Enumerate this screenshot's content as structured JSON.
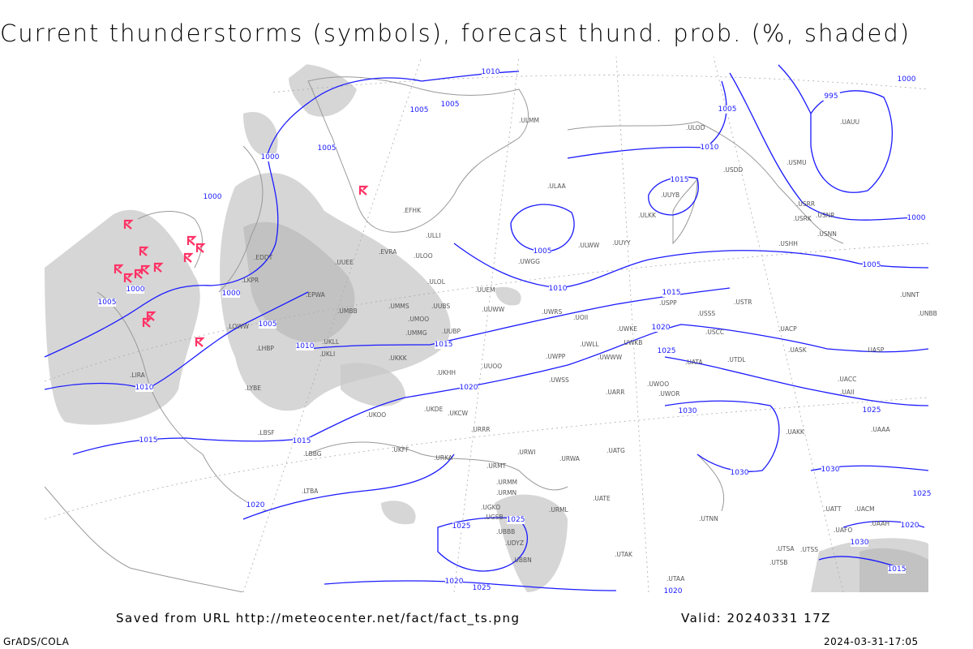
{
  "title": "Current thunderstorms (symbols), forecast thund. prob. (%, shaded)",
  "footer": {
    "saved_from": "Saved from URL http://meteocenter.net/fact/fact_ts.png",
    "valid": "Valid: 20240331 17Z",
    "software": "GrADS/COLA",
    "timestamp": "2024-03-31-17:05"
  },
  "colors": {
    "isobars": "#1a1aff",
    "thunderstorm_symbols": "#ff3366",
    "shading": "#c8c8c8",
    "coastlines": "#999999"
  },
  "map": {
    "isobar_labels": [
      "1010",
      "1000",
      "995",
      "1005",
      "1005",
      "1005",
      "1010",
      "1005",
      "1000",
      "1000",
      "1015",
      "1000",
      "1005",
      "1005",
      "1000",
      "1010",
      "1005",
      "1000",
      "1015",
      "1005",
      "1020",
      "1015",
      "1010",
      "1025",
      "1010",
      "1020",
      "1025",
      "1030",
      "1015",
      "1015",
      "1030",
      "1030",
      "1020",
      "1025",
      "1025",
      "1025",
      "1020",
      "1030",
      "1015",
      "1020",
      "1025",
      "1020"
    ],
    "stations": [
      "EDDT",
      "EPWA",
      "LKPR",
      "LOWW",
      "LHBP",
      "LIRA",
      "LYBE",
      "LBSF",
      "LBBG",
      "LTBA",
      "EVRA",
      "ULOO",
      "ULOL",
      "UMMS",
      "UMOO",
      "UMMG",
      "UMBB",
      "UKLL",
      "UKLI",
      "UUEE",
      "ULLI",
      "EFHK",
      "UUEM",
      "UUWW",
      "UUOO",
      "UUBS",
      "UUBP",
      "UKKK",
      "UKHH",
      "UKDE",
      "UKOO",
      "UKCW",
      "URRR",
      "UKFF",
      "URKA",
      "URMT",
      "URMM",
      "URMN",
      "URWI",
      "URWA",
      "UATG",
      "UATE",
      "URML",
      "UGKO",
      "UGSB",
      "UBBB",
      "UDYZ",
      "UBBN",
      "UTAK",
      "UTAA",
      "UTNN",
      "UTSA",
      "UTSS",
      "UTSB",
      "UATT",
      "UAKK",
      "UACC",
      "UAII",
      "UASP",
      "UASK",
      "USCC",
      "USSS",
      "USTR",
      "UNNT",
      "UNBB",
      "USPP",
      "UWKE",
      "UWLL",
      "UWKB",
      "UWWW",
      "UWPP",
      "UWSS",
      "UWOO",
      "UWOR",
      "UARR",
      "UACP",
      "USRR",
      "USRK",
      "USNN",
      "USHH",
      "USNR",
      "USMU",
      "USDD",
      "ULOD",
      "ULAA",
      "ULMM",
      "UUYY",
      "UUYB",
      "ULKK",
      "ULWW",
      "UWGG",
      "UWRS",
      "UOII",
      "UAUU",
      "UTDL",
      "UAFO",
      "UAAH",
      "UAAA",
      "UACM",
      "UATA"
    ],
    "thunderstorm_count": 14
  }
}
